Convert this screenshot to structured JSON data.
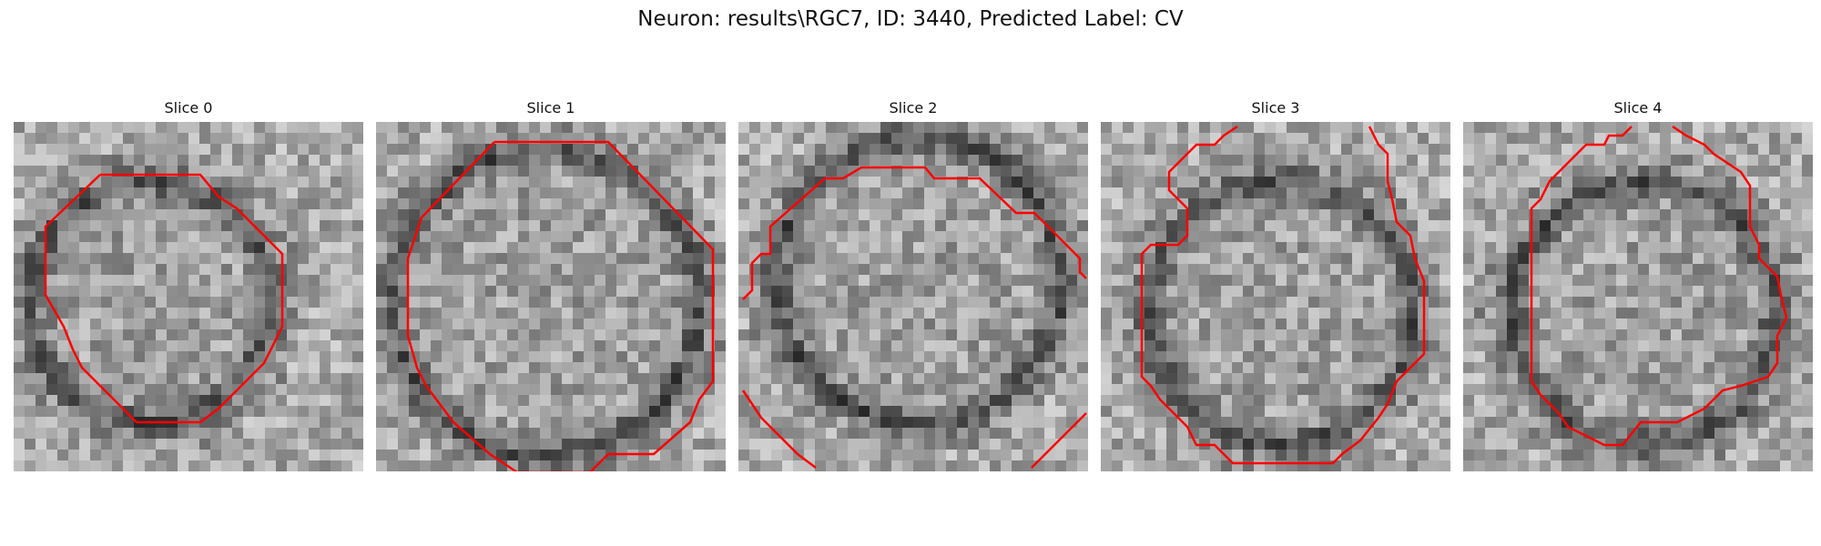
{
  "figure": {
    "title": "Neuron: results\\RGC7, ID: 3440, Predicted Label: CV"
  },
  "colors": {
    "contour": "#ff0000",
    "image_light": "#e8e8e8",
    "image_dark": "#1a1a1a"
  },
  "panels": [
    {
      "title": "Slice 0"
    },
    {
      "title": "Slice 1"
    },
    {
      "title": "Slice 2"
    },
    {
      "title": "Slice 3"
    },
    {
      "title": "Slice 4"
    }
  ]
}
